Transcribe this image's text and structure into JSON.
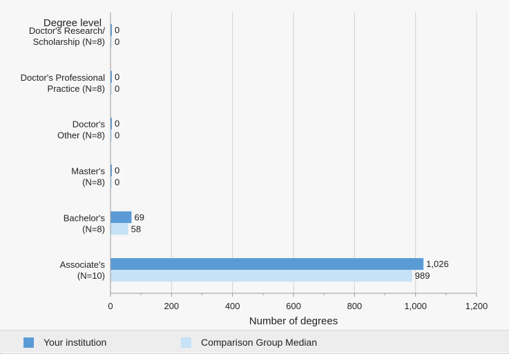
{
  "chart_data": {
    "type": "bar",
    "orientation": "horizontal",
    "title": "",
    "ylabel": "Degree level",
    "xlabel": "Number of degrees",
    "categories": [
      [
        "Doctor's Research/",
        "Scholarship (N=8)"
      ],
      [
        "Doctor's Professional",
        "Practice (N=8)"
      ],
      [
        "Doctor's",
        "Other (N=8)"
      ],
      [
        "Master's",
        "(N=8)"
      ],
      [
        "Bachelor's",
        "(N=8)"
      ],
      [
        "Associate's",
        "(N=10)"
      ]
    ],
    "series": [
      {
        "name": "Your institution",
        "values": [
          0,
          0,
          0,
          0,
          69,
          1026
        ],
        "labels": [
          "0",
          "0",
          "0",
          "0",
          "69",
          "1,026"
        ],
        "color": "#5b9bd5"
      },
      {
        "name": "Comparison Group Median",
        "values": [
          0,
          0,
          0,
          0,
          58,
          989
        ],
        "labels": [
          "0",
          "0",
          "0",
          "0",
          "58",
          "989"
        ],
        "color": "#c6e2f7"
      }
    ],
    "xlim": [
      0,
      1200
    ],
    "xticks": [
      0,
      200,
      400,
      600,
      800,
      1000,
      1200
    ],
    "xtick_labels": [
      "0",
      "200",
      "400",
      "600",
      "800",
      "1,000",
      "1,200"
    ],
    "grid": true,
    "legend_position": "bottom"
  },
  "legend": {
    "items": [
      {
        "label": "Your institution",
        "color": "#5b9bd5"
      },
      {
        "label": "Comparison Group Median",
        "color": "#c6e2f7"
      }
    ]
  }
}
